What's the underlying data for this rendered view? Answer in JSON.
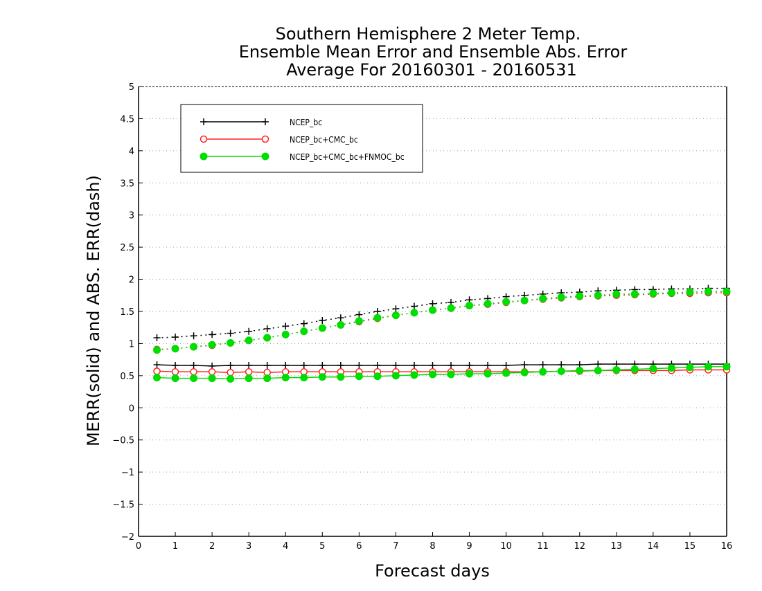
{
  "chart_data": {
    "type": "line",
    "title_lines": [
      "Southern Hemisphere 2 Meter Temp.",
      "Ensemble Mean Error and Ensemble Abs. Error",
      "Average For 20160301 - 20160531"
    ],
    "xlabel": "Forecast days",
    "ylabel": "MERR(solid) and ABS. ERR(dash)",
    "xlim": [
      0,
      16
    ],
    "ylim": [
      -2,
      5
    ],
    "x_ticks": [
      0,
      1,
      2,
      3,
      4,
      5,
      6,
      7,
      8,
      9,
      10,
      11,
      12,
      13,
      14,
      15,
      16
    ],
    "y_ticks": [
      -2,
      -1.5,
      -1,
      -0.5,
      0,
      0.5,
      1,
      1.5,
      2,
      2.5,
      3,
      3.5,
      4,
      4.5,
      5
    ],
    "grid": "horizontal dotted",
    "legend_position": "top-left",
    "x": [
      0.5,
      1,
      1.5,
      2,
      2.5,
      3,
      3.5,
      4,
      4.5,
      5,
      5.5,
      6,
      6.5,
      7,
      7.5,
      8,
      8.5,
      9,
      9.5,
      10,
      10.5,
      11,
      11.5,
      12,
      12.5,
      13,
      13.5,
      14,
      14.5,
      15,
      15.5,
      16
    ],
    "series": [
      {
        "name": "NCEP_bc",
        "color": "#000000",
        "marker": "plus",
        "merr": [
          0.67,
          0.66,
          0.66,
          0.65,
          0.66,
          0.66,
          0.66,
          0.66,
          0.66,
          0.66,
          0.66,
          0.66,
          0.66,
          0.66,
          0.66,
          0.66,
          0.66,
          0.66,
          0.66,
          0.66,
          0.67,
          0.67,
          0.67,
          0.67,
          0.68,
          0.68,
          0.68,
          0.68,
          0.68,
          0.68,
          0.68,
          0.68
        ],
        "abs_err": [
          1.09,
          1.1,
          1.12,
          1.14,
          1.16,
          1.19,
          1.23,
          1.27,
          1.31,
          1.36,
          1.4,
          1.45,
          1.5,
          1.54,
          1.58,
          1.62,
          1.64,
          1.68,
          1.7,
          1.73,
          1.75,
          1.77,
          1.79,
          1.8,
          1.82,
          1.83,
          1.84,
          1.84,
          1.85,
          1.85,
          1.86,
          1.86
        ]
      },
      {
        "name": "NCEP_bc+CMC_bc",
        "color": "#ff2020",
        "marker": "open-circle",
        "merr": [
          0.57,
          0.56,
          0.56,
          0.56,
          0.55,
          0.56,
          0.55,
          0.56,
          0.56,
          0.56,
          0.56,
          0.56,
          0.56,
          0.56,
          0.56,
          0.56,
          0.56,
          0.56,
          0.56,
          0.56,
          0.56,
          0.56,
          0.57,
          0.57,
          0.58,
          0.58,
          0.58,
          0.58,
          0.58,
          0.59,
          0.59,
          0.59
        ],
        "abs_err": [
          0.91,
          0.92,
          0.95,
          0.97,
          1.01,
          1.05,
          1.09,
          1.14,
          1.19,
          1.24,
          1.29,
          1.34,
          1.39,
          1.44,
          1.48,
          1.52,
          1.55,
          1.59,
          1.61,
          1.64,
          1.67,
          1.69,
          1.71,
          1.73,
          1.74,
          1.75,
          1.76,
          1.77,
          1.78,
          1.78,
          1.79,
          1.79
        ]
      },
      {
        "name": "NCEP_bc+CMC_bc+FNMOC_bc",
        "color": "#00dd00",
        "marker": "filled-circle",
        "merr": [
          0.47,
          0.46,
          0.46,
          0.46,
          0.45,
          0.46,
          0.46,
          0.47,
          0.47,
          0.48,
          0.48,
          0.49,
          0.49,
          0.5,
          0.51,
          0.52,
          0.52,
          0.53,
          0.53,
          0.54,
          0.55,
          0.56,
          0.57,
          0.58,
          0.58,
          0.59,
          0.6,
          0.61,
          0.62,
          0.63,
          0.64,
          0.64
        ],
        "abs_err": [
          0.9,
          0.92,
          0.95,
          0.98,
          1.01,
          1.05,
          1.09,
          1.14,
          1.19,
          1.24,
          1.29,
          1.35,
          1.4,
          1.44,
          1.48,
          1.52,
          1.55,
          1.59,
          1.62,
          1.65,
          1.67,
          1.7,
          1.72,
          1.74,
          1.75,
          1.77,
          1.77,
          1.78,
          1.79,
          1.8,
          1.81,
          1.81
        ]
      }
    ]
  }
}
